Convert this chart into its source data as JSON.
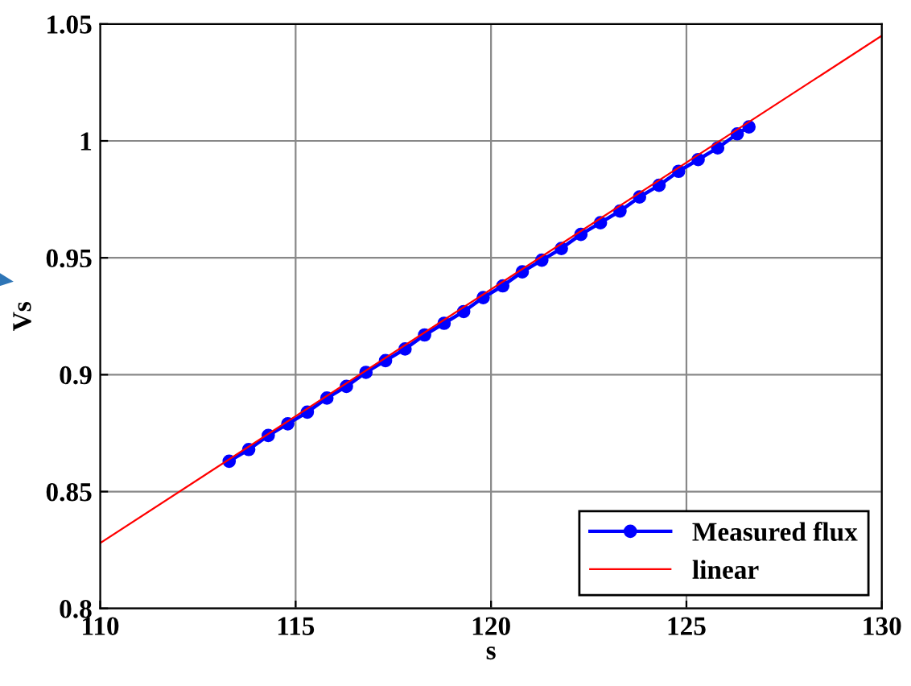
{
  "chart_data": {
    "type": "line",
    "xlabel": "s",
    "ylabel": "Vs",
    "xlim": [
      110,
      130
    ],
    "xticks": [
      110,
      115,
      120,
      125,
      130
    ],
    "ylim": [
      0.8,
      1.05
    ],
    "yticks": [
      0.8,
      0.85,
      0.9,
      0.95,
      1,
      1.05
    ],
    "grid": true,
    "legend": "bottom right",
    "series": [
      {
        "name": "Measured flux",
        "color": "#0000ff",
        "marker": "circle",
        "x": [
          113.3,
          113.8,
          114.3,
          114.8,
          115.3,
          115.8,
          116.3,
          116.8,
          117.3,
          117.8,
          118.3,
          118.8,
          119.3,
          119.8,
          120.3,
          120.8,
          121.3,
          121.8,
          122.3,
          122.8,
          123.3,
          123.8,
          124.3,
          124.8,
          125.3,
          125.8,
          126.3,
          126.6
        ],
        "values": [
          0.863,
          0.868,
          0.874,
          0.879,
          0.884,
          0.89,
          0.895,
          0.901,
          0.906,
          0.911,
          0.917,
          0.922,
          0.927,
          0.933,
          0.938,
          0.944,
          0.949,
          0.954,
          0.96,
          0.965,
          0.97,
          0.976,
          0.981,
          0.987,
          0.992,
          0.997,
          1.003,
          1.006
        ]
      },
      {
        "name": "linear",
        "color": "#ff0000",
        "marker": "none",
        "x": [
          110,
          130
        ],
        "values": [
          0.828,
          1.045
        ]
      }
    ]
  }
}
